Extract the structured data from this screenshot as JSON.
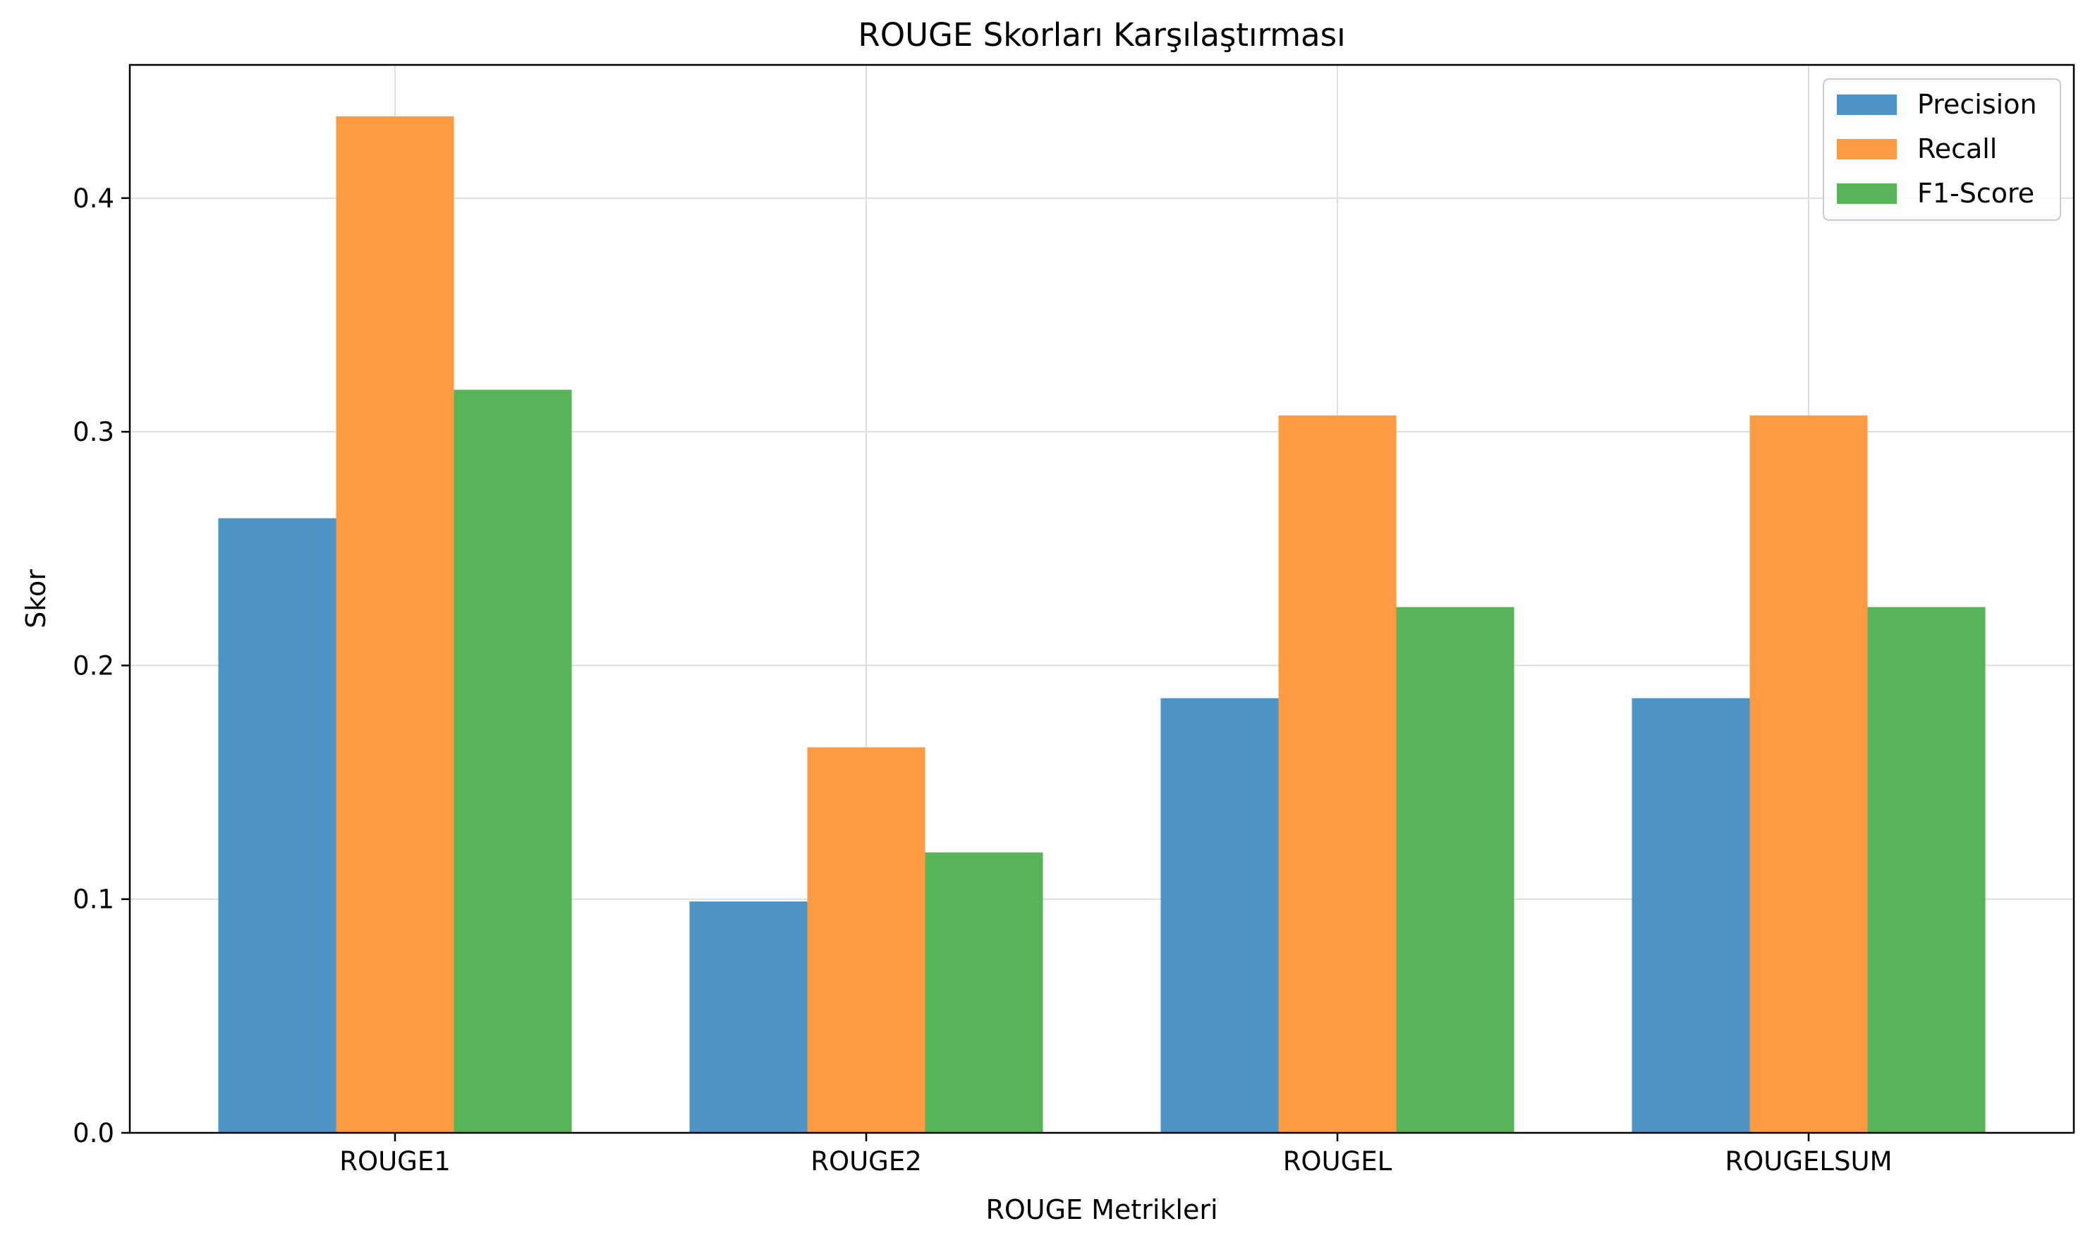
{
  "chart_data": {
    "type": "bar",
    "title": "ROUGE Skorları Karşılaştırması",
    "xlabel": "ROUGE Metrikleri",
    "ylabel": "Skor",
    "categories": [
      "ROUGE1",
      "ROUGE2",
      "ROUGEL",
      "ROUGELSUM"
    ],
    "series": [
      {
        "name": "Precision",
        "color": "#4e93c5",
        "values": [
          0.263,
          0.099,
          0.186,
          0.186
        ]
      },
      {
        "name": "Recall",
        "color": "#fe9a42",
        "values": [
          0.435,
          0.165,
          0.307,
          0.307
        ]
      },
      {
        "name": "F1-Score",
        "color": "#58b458",
        "values": [
          0.318,
          0.12,
          0.225,
          0.225
        ]
      }
    ],
    "ylim": [
      0,
      0.457
    ],
    "yticks": [
      "0.0",
      "0.1",
      "0.2",
      "0.3",
      "0.4"
    ],
    "grid": true,
    "legend_position": "top-right"
  }
}
